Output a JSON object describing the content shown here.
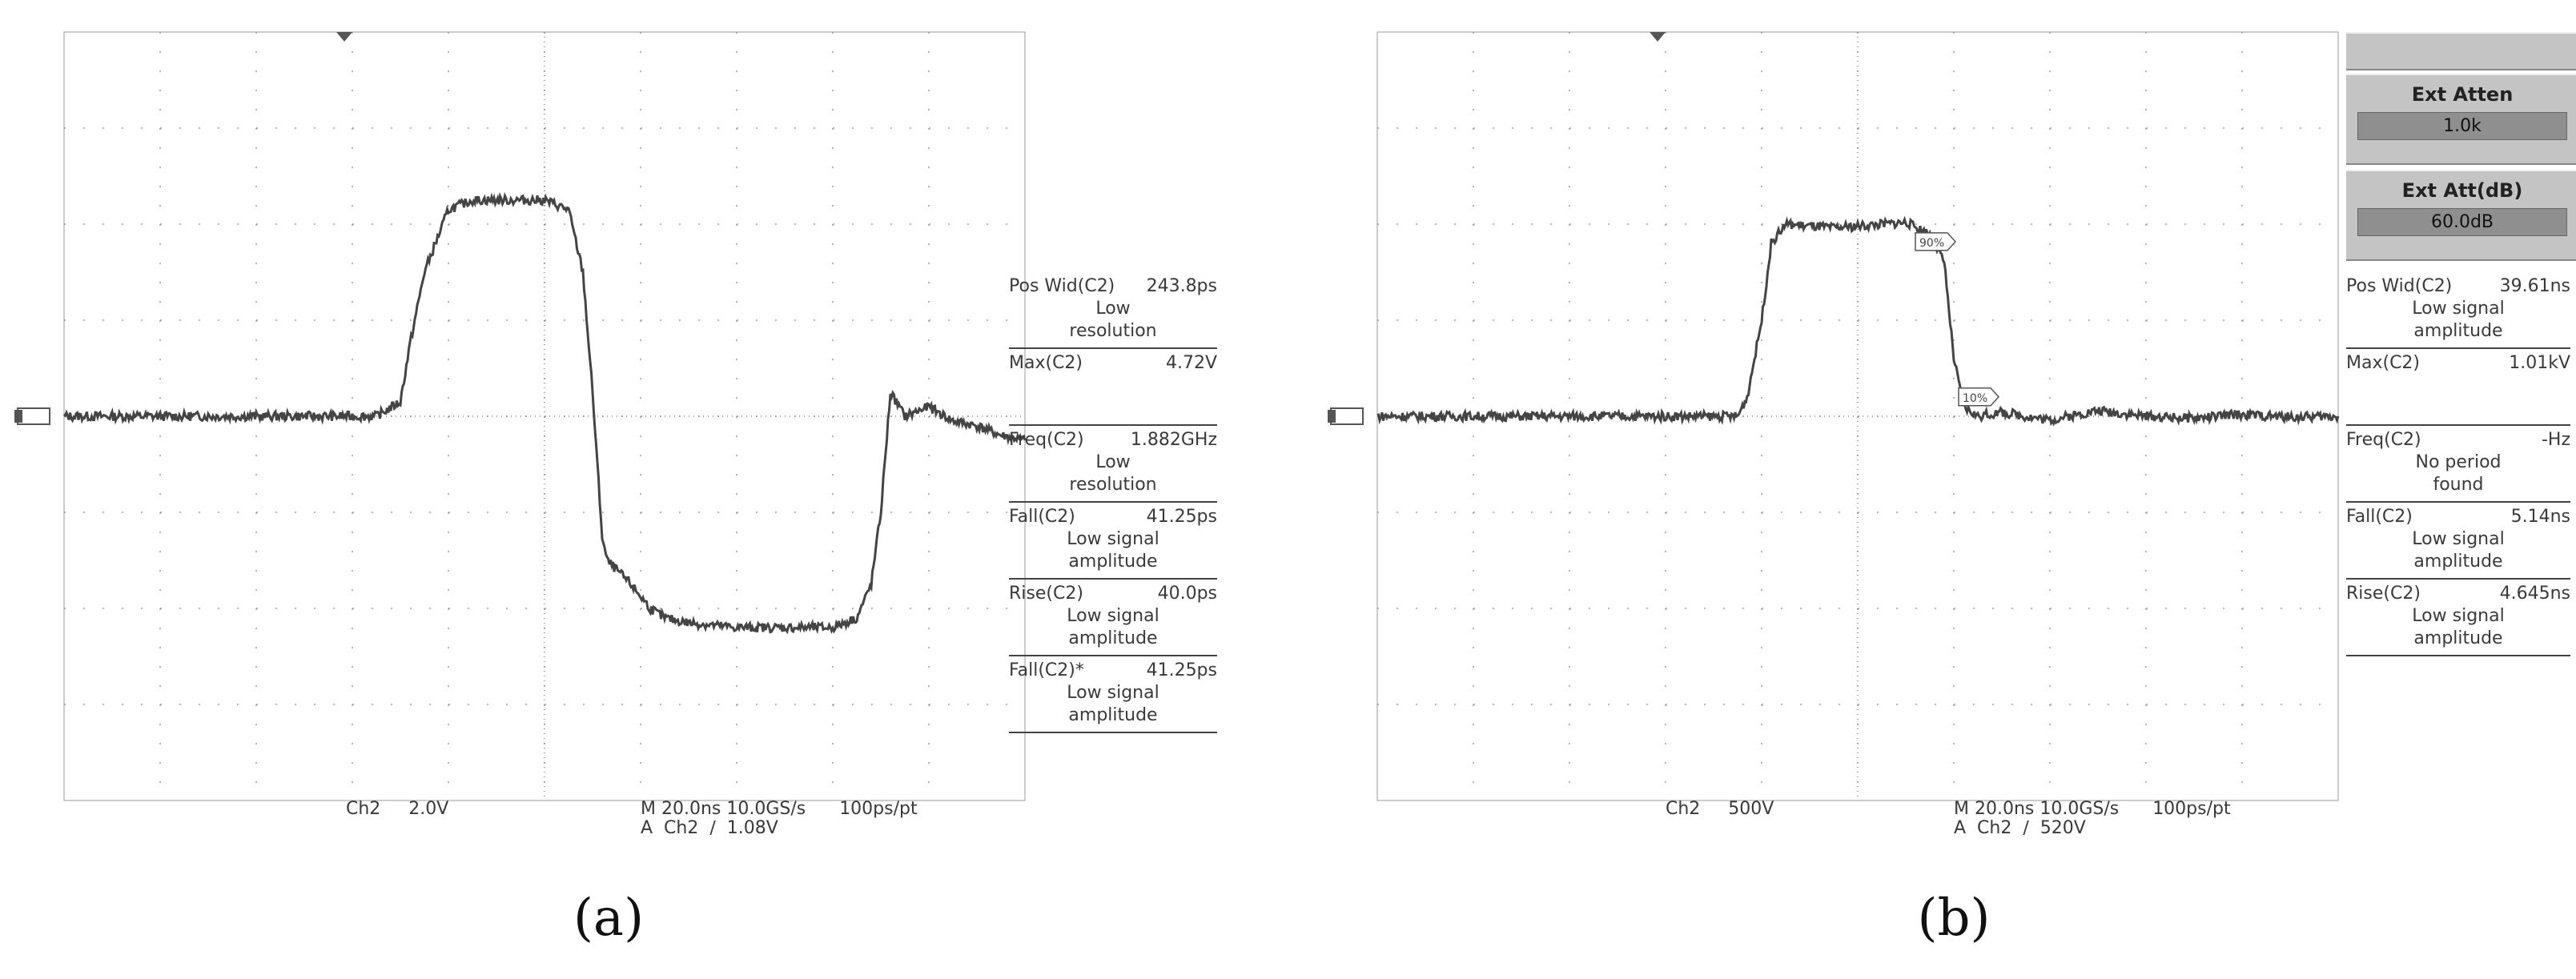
{
  "panels": [
    {
      "id": "a",
      "label": "(a)",
      "status": {
        "ch_line": "Ch2     2.0V",
        "time_line": "M 20.0ns 10.0GS/s      100ps/pt",
        "trigger_line": "A  Ch2  ∕  1.08V"
      },
      "measurements": [
        {
          "name": "Pos Wid(C2)",
          "value": "243.8ps",
          "note1": "Low",
          "note2": "resolution"
        },
        {
          "name": "Max(C2)",
          "value": "4.72V",
          "note1": "",
          "note2": ""
        },
        {
          "name": "Freq(C2)",
          "value": "1.882GHz",
          "note1": "Low",
          "note2": "resolution"
        },
        {
          "name": "Fall(C2)",
          "value": "41.25ps",
          "note1": "Low signal",
          "note2": "amplitude"
        },
        {
          "name": "Rise(C2)",
          "value": "40.0ps",
          "note1": "Low signal",
          "note2": "amplitude"
        },
        {
          "name": "Fall(C2)*",
          "value": "41.25ps",
          "note1": "Low signal",
          "note2": "amplitude"
        }
      ]
    },
    {
      "id": "b",
      "label": "(b)",
      "side_buttons": [
        {
          "title": "Ext Atten",
          "value": "1.0k"
        },
        {
          "title": "Ext Att(dB)",
          "value": "60.0dB"
        }
      ],
      "status": {
        "ch_line": "Ch2     500V",
        "time_line": "M 20.0ns 10.0GS/s      100ps/pt",
        "trigger_line": "A  Ch2  ∕  520V"
      },
      "measurements": [
        {
          "name": "Pos Wid(C2)",
          "value": "39.61ns",
          "note1": "Low signal",
          "note2": "amplitude"
        },
        {
          "name": "Max(C2)",
          "value": "1.01kV",
          "note1": "",
          "note2": ""
        },
        {
          "name": "Freq(C2)",
          "value": "-Hz",
          "note1": "No period",
          "note2": "found"
        },
        {
          "name": "Fall(C2)",
          "value": "5.14ns",
          "note1": "Low signal",
          "note2": "amplitude"
        },
        {
          "name": "Rise(C2)",
          "value": "4.645ns",
          "note1": "Low signal",
          "note2": "amplitude"
        }
      ],
      "markers": [
        "90%",
        "10%"
      ]
    }
  ],
  "chart_data": [
    {
      "type": "line",
      "title": "",
      "xlabel": "",
      "ylabel": "",
      "grid": true,
      "x_units": "ns",
      "y_units": "V",
      "xlim": [
        0,
        200
      ],
      "ylim": [
        -8,
        8
      ],
      "series": [
        {
          "x": [
            0,
            65,
            70,
            72,
            75,
            80,
            85,
            100,
            105,
            108,
            110,
            112,
            113,
            115,
            118,
            122,
            125,
            130,
            140,
            150,
            160,
            165,
            168,
            170,
            172,
            175,
            180,
            185,
            190,
            195,
            200
          ],
          "values": [
            0,
            0,
            0.3,
            1.5,
            3.0,
            4.3,
            4.5,
            4.5,
            4.3,
            3.0,
            0.5,
            -2.5,
            -3.0,
            -3.2,
            -3.5,
            -4.0,
            -4.2,
            -4.3,
            -4.4,
            -4.4,
            -4.4,
            -4.2,
            -3.5,
            -2.0,
            0.5,
            0.0,
            0.2,
            -0.1,
            -0.2,
            -0.4,
            -0.5
          ]
        }
      ]
    },
    {
      "type": "line",
      "title": "",
      "xlabel": "",
      "ylabel": "",
      "grid": true,
      "x_units": "ns",
      "y_units": "V",
      "xlim": [
        0,
        200
      ],
      "ylim": [
        -2000,
        2000
      ],
      "series": [
        {
          "x": [
            0,
            75,
            77,
            80,
            82,
            85,
            95,
            105,
            110,
            115,
            118,
            120,
            122,
            125,
            130,
            140,
            150,
            160,
            170,
            180,
            190,
            200
          ],
          "values": [
            0,
            0,
            100,
            500,
            900,
            1000,
            980,
            1000,
            1010,
            950,
            800,
            300,
            50,
            0,
            20,
            -20,
            30,
            0,
            -10,
            10,
            -5,
            0
          ]
        }
      ]
    }
  ]
}
